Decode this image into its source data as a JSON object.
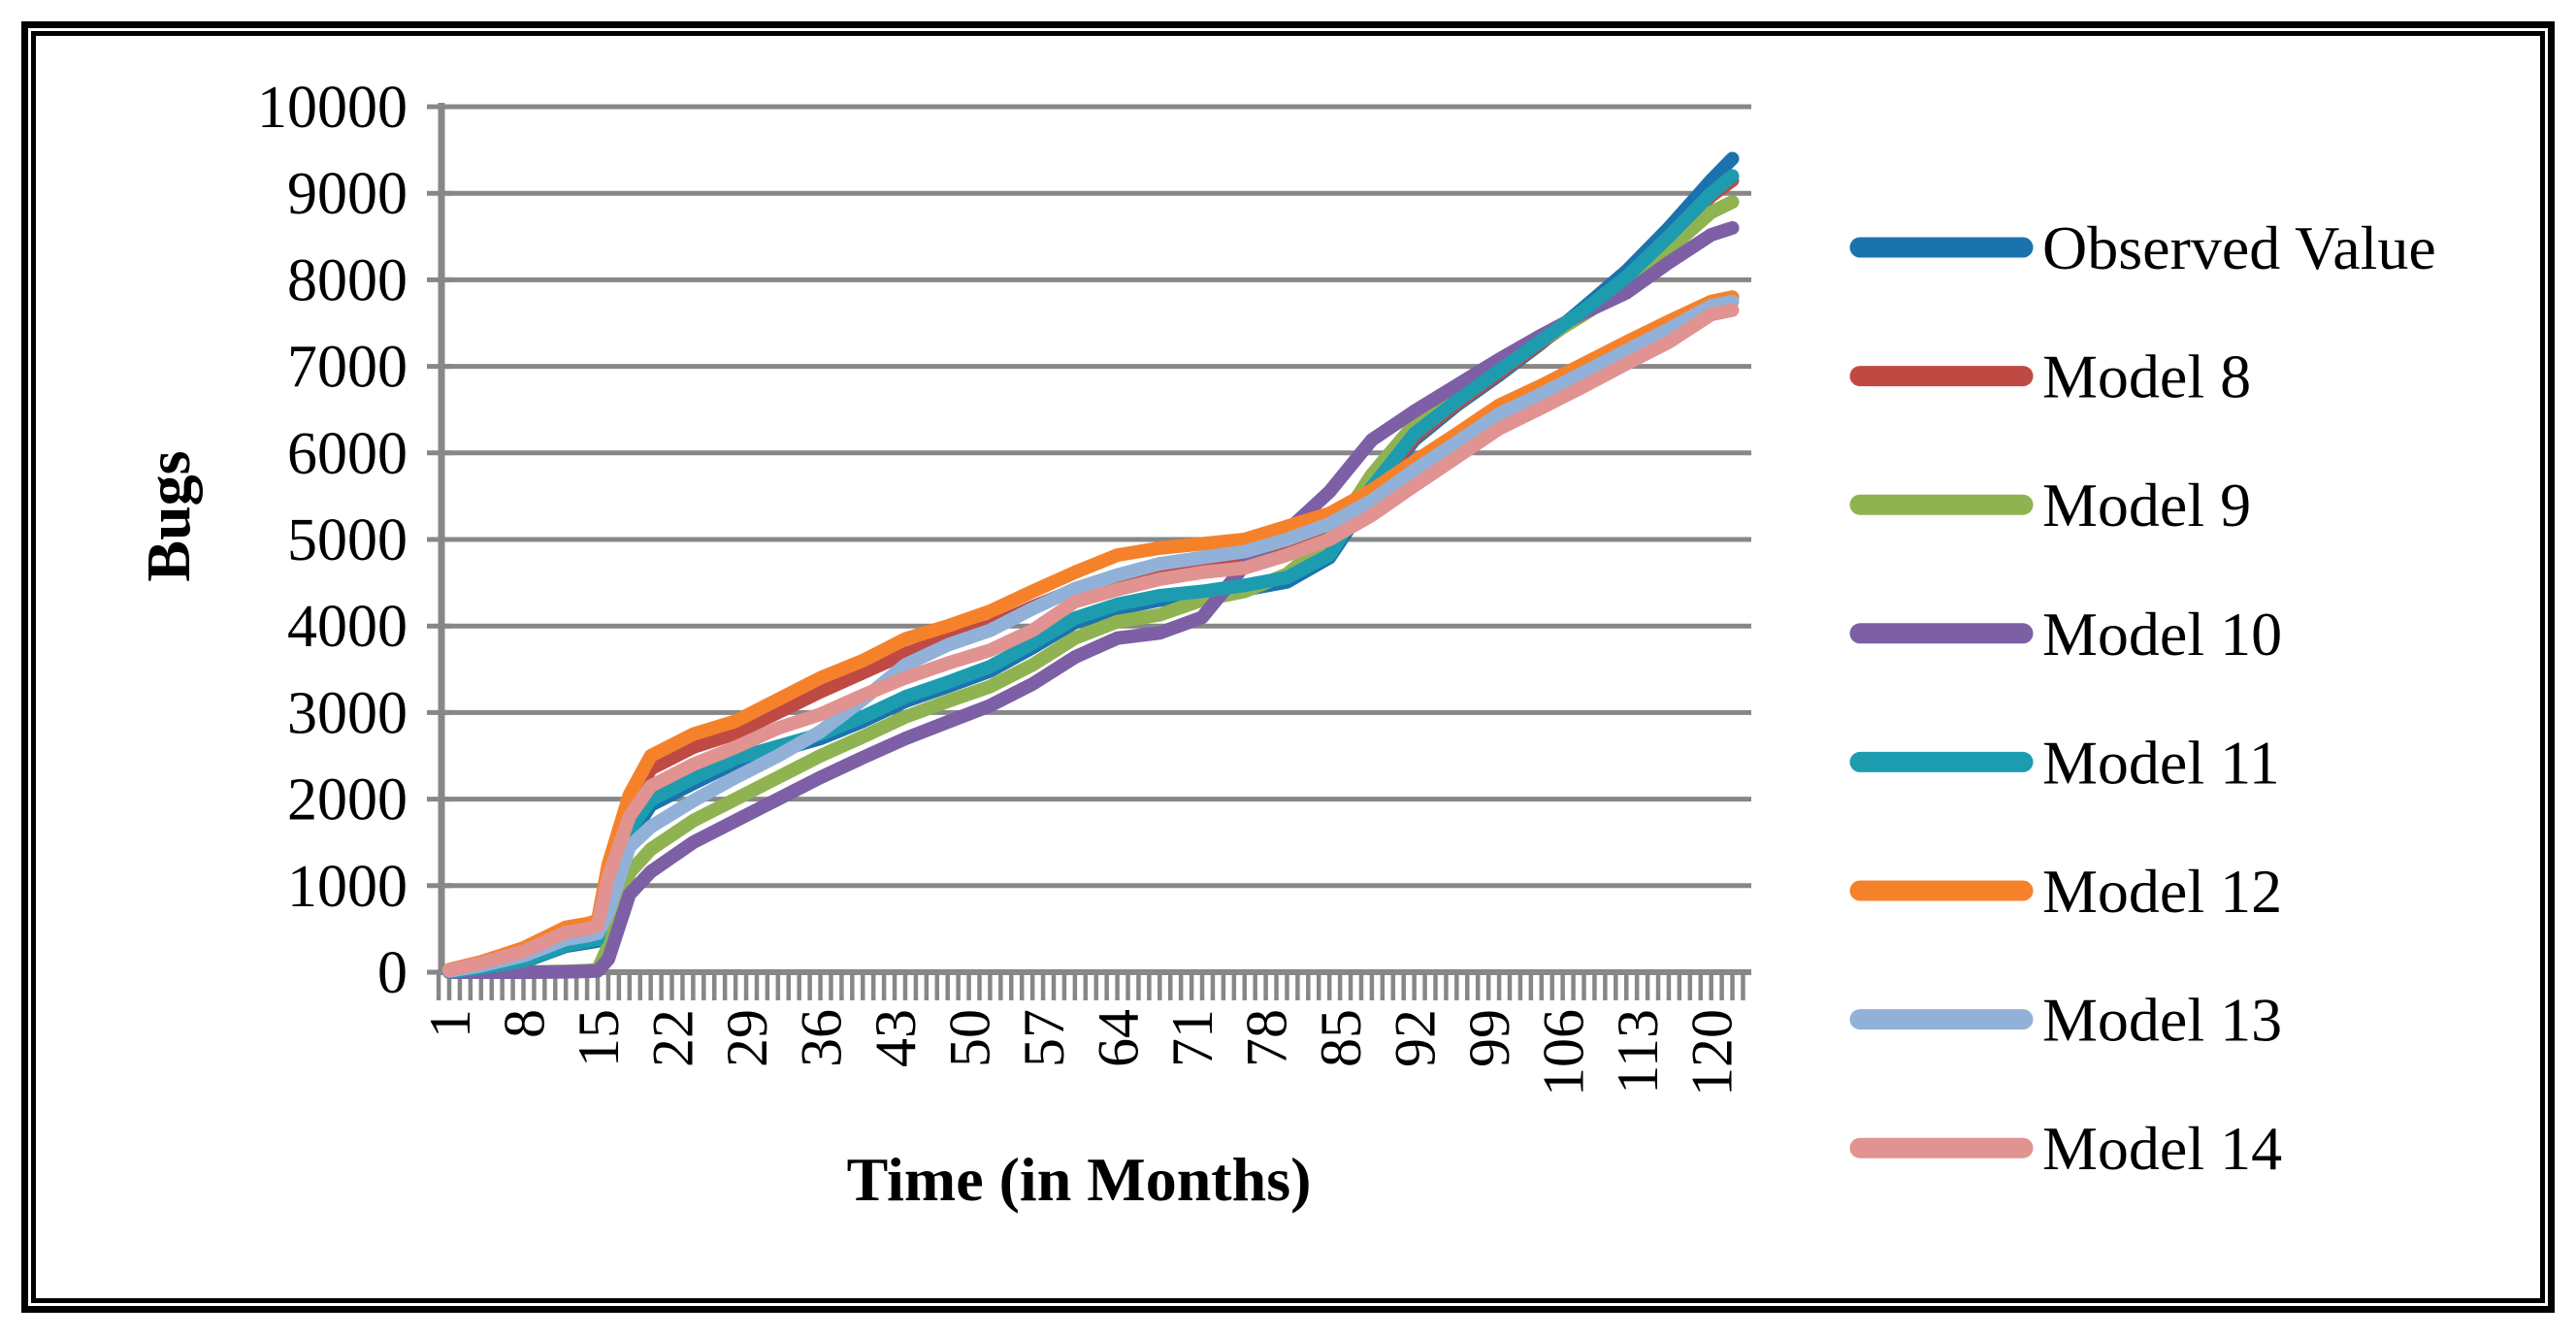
{
  "figure": {
    "background": "#ffffff",
    "frame_color": "#000000"
  },
  "chart_data": {
    "type": "line",
    "title": "",
    "xlabel": "Time (in Months)",
    "ylabel": "Bugs",
    "ylim": [
      0,
      10000
    ],
    "xlim": [
      0,
      123
    ],
    "grid": "horizontal",
    "grid_color": "#878787",
    "axis_color": "#878787",
    "tick_label_color": "#000000",
    "legend_position": "right",
    "y_ticks": [
      0,
      1000,
      2000,
      3000,
      4000,
      5000,
      6000,
      7000,
      8000,
      9000,
      10000
    ],
    "x_tick_labels": [
      1,
      8,
      15,
      22,
      29,
      36,
      43,
      50,
      57,
      64,
      71,
      78,
      85,
      92,
      99,
      106,
      113,
      120
    ],
    "x_minor_tick_every_month": true,
    "x": [
      1,
      4,
      8,
      12,
      14,
      15,
      16,
      18,
      20,
      24,
      28,
      32,
      36,
      40,
      44,
      48,
      52,
      56,
      60,
      64,
      68,
      72,
      76,
      80,
      84,
      88,
      92,
      96,
      100,
      104,
      108,
      112,
      116,
      120,
      122
    ],
    "series": [
      {
        "name": "Observed Value",
        "color": "#1b73ad",
        "values": [
          5,
          45,
          120,
          300,
          340,
          360,
          800,
          1550,
          1930,
          2180,
          2420,
          2560,
          2700,
          2900,
          3130,
          3300,
          3480,
          3750,
          4040,
          4200,
          4300,
          4350,
          4420,
          4510,
          4790,
          5520,
          6150,
          6550,
          6900,
          7270,
          7680,
          8100,
          8600,
          9150,
          9400
        ]
      },
      {
        "name": "Model 8",
        "color": "#bf4a44",
        "values": [
          10,
          60,
          150,
          340,
          380,
          420,
          1100,
          1900,
          2350,
          2600,
          2760,
          3000,
          3240,
          3460,
          3680,
          3850,
          4000,
          4220,
          4420,
          4500,
          4560,
          4640,
          4740,
          4900,
          5080,
          5560,
          6180,
          6570,
          6920,
          7280,
          7620,
          8000,
          8470,
          8970,
          9150
        ]
      },
      {
        "name": "Model 9",
        "color": "#8fb350",
        "values": [
          0,
          0,
          0,
          10,
          20,
          30,
          300,
          1150,
          1420,
          1750,
          2000,
          2250,
          2500,
          2720,
          2950,
          3130,
          3300,
          3550,
          3860,
          4050,
          4130,
          4300,
          4400,
          4600,
          5000,
          5750,
          6330,
          6680,
          6990,
          7300,
          7600,
          7920,
          8350,
          8780,
          8900
        ]
      },
      {
        "name": "Model 10",
        "color": "#7d5fa5",
        "values": [
          0,
          0,
          0,
          5,
          10,
          15,
          150,
          900,
          1160,
          1500,
          1750,
          2000,
          2250,
          2480,
          2700,
          2890,
          3080,
          3330,
          3640,
          3860,
          3920,
          4100,
          4700,
          5100,
          5550,
          6150,
          6480,
          6780,
          7080,
          7360,
          7620,
          7850,
          8200,
          8520,
          8600
        ]
      },
      {
        "name": "Model 11",
        "color": "#1d9cb0",
        "values": [
          5,
          50,
          130,
          310,
          360,
          380,
          900,
          1650,
          1990,
          2240,
          2470,
          2610,
          2750,
          2950,
          3180,
          3350,
          3530,
          3800,
          4090,
          4250,
          4350,
          4400,
          4470,
          4560,
          4820,
          5600,
          6220,
          6600,
          6950,
          7300,
          7650,
          8030,
          8500,
          9000,
          9200
        ]
      },
      {
        "name": "Model 12",
        "color": "#f5822b",
        "values": [
          30,
          120,
          280,
          520,
          560,
          600,
          1250,
          2050,
          2500,
          2750,
          2900,
          3150,
          3400,
          3600,
          3850,
          4000,
          4170,
          4400,
          4620,
          4820,
          4900,
          4950,
          5000,
          5150,
          5300,
          5570,
          5900,
          6220,
          6550,
          6780,
          7030,
          7280,
          7520,
          7750,
          7800
        ]
      },
      {
        "name": "Model 13",
        "color": "#92b1d8",
        "values": [
          15,
          75,
          190,
          380,
          420,
          450,
          700,
          1450,
          1680,
          1980,
          2250,
          2500,
          2780,
          3150,
          3550,
          3780,
          3950,
          4200,
          4430,
          4590,
          4720,
          4790,
          4860,
          5000,
          5180,
          5450,
          5800,
          6120,
          6450,
          6680,
          6930,
          7180,
          7430,
          7700,
          7750
        ]
      },
      {
        "name": "Model 14",
        "color": "#e09390",
        "values": [
          25,
          105,
          240,
          460,
          500,
          540,
          1100,
          1800,
          2150,
          2400,
          2600,
          2820,
          2980,
          3200,
          3400,
          3570,
          3720,
          3950,
          4280,
          4420,
          4540,
          4620,
          4670,
          4820,
          5000,
          5280,
          5620,
          5950,
          6280,
          6520,
          6770,
          7030,
          7280,
          7600,
          7650
        ]
      }
    ]
  }
}
